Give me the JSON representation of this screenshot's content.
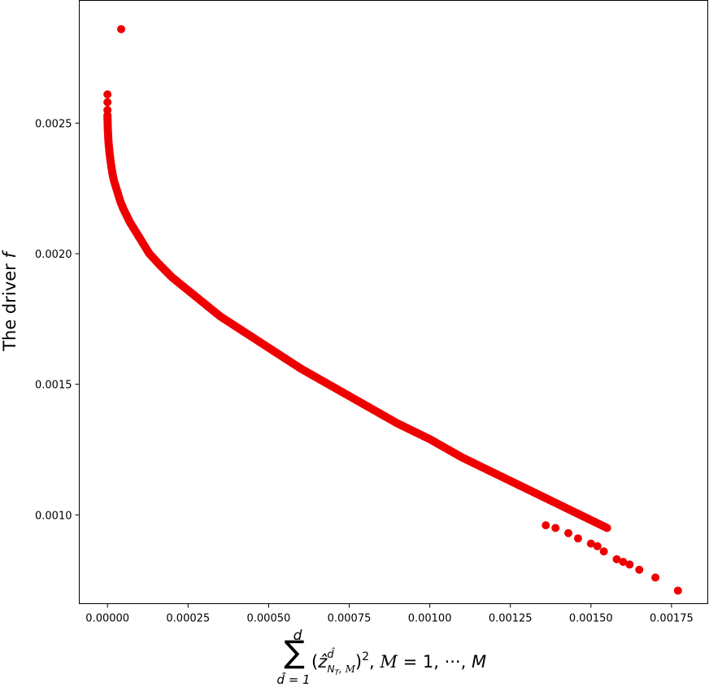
{
  "chart_data": {
    "type": "scatter",
    "ylabel": "The driver f",
    "xlabel": "sum_{d̂=1}^{d} (ẑ^{d̂}_{N_T, M})^2, M = 1, ···, M",
    "xlabel_parts": {
      "sum": "∑",
      "upper": "d",
      "lower": "d̂ = 1",
      "open": "(",
      "z": "ẑ",
      "z_sup": "d̂",
      "z_sub": "N_T, M",
      "close": ")",
      "power": "2",
      "rest_a": ", ",
      "calM": "M",
      "rest_b": " = 1, ···, ",
      "M": "M"
    },
    "xlim": [
      -8.75e-05,
      0.0018625
    ],
    "ylim": [
      0.00066,
      0.00297
    ],
    "xticks": [
      0.0,
      0.00025,
      0.0005,
      0.00075,
      0.001,
      0.00125,
      0.0015,
      0.00175
    ],
    "xtick_labels": [
      "0.00000",
      "0.00025",
      "0.00050",
      "0.00075",
      "0.00100",
      "0.00125",
      "0.00150",
      "0.00175"
    ],
    "yticks": [
      0.001,
      0.0015,
      0.002,
      0.0025
    ],
    "ytick_labels": [
      "0.0010",
      "0.0015",
      "0.0020",
      "0.0025"
    ],
    "grid": false,
    "marker_color": "#ee0000",
    "curve": {
      "description_free": true,
      "points": [
        [
          0.0,
          0.00253
        ],
        [
          1e-06,
          0.00248
        ],
        [
          3e-06,
          0.00243
        ],
        [
          6e-06,
          0.00239
        ],
        [
          1e-05,
          0.00235
        ],
        [
          1.5e-05,
          0.00231
        ],
        [
          2e-05,
          0.00228
        ],
        [
          3e-05,
          0.00224
        ],
        [
          4e-05,
          0.0022
        ],
        [
          5e-05,
          0.00217
        ],
        [
          7e-05,
          0.00212
        ],
        [
          0.0001,
          0.00206
        ],
        [
          0.00013,
          0.002
        ],
        [
          0.00016,
          0.00196
        ],
        [
          0.0002,
          0.00191
        ],
        [
          0.00025,
          0.00186
        ],
        [
          0.0003,
          0.00181
        ],
        [
          0.00035,
          0.00176
        ],
        [
          0.0004,
          0.00172
        ],
        [
          0.00045,
          0.00168
        ],
        [
          0.0005,
          0.00164
        ],
        [
          0.0006,
          0.00156
        ],
        [
          0.0007,
          0.00149
        ],
        [
          0.0008,
          0.00142
        ],
        [
          0.0009,
          0.00135
        ],
        [
          0.001,
          0.00129
        ],
        [
          0.0011,
          0.00122
        ],
        [
          0.0012,
          0.00116
        ],
        [
          0.0013,
          0.0011
        ],
        [
          0.0014,
          0.00104
        ],
        [
          0.00145,
          0.00101
        ],
        [
          0.0015,
          0.00098
        ],
        [
          0.00155,
          0.00095
        ]
      ]
    },
    "isolated_points": [
      [
        0.0,
        0.00261
      ],
      [
        0.0,
        0.00258
      ],
      [
        0.0,
        0.00255
      ],
      [
        4.25e-05,
        0.00286
      ],
      [
        0.00136,
        0.00096
      ],
      [
        0.00139,
        0.00095
      ],
      [
        0.00143,
        0.00093
      ],
      [
        0.00146,
        0.00091
      ],
      [
        0.0015,
        0.00089
      ],
      [
        0.00152,
        0.00088
      ],
      [
        0.00154,
        0.00086
      ],
      [
        0.00158,
        0.00083
      ],
      [
        0.0016,
        0.00082
      ],
      [
        0.00162,
        0.00081
      ],
      [
        0.00165,
        0.00079
      ],
      [
        0.0017,
        0.00076
      ],
      [
        0.00177,
        0.00071
      ]
    ]
  }
}
